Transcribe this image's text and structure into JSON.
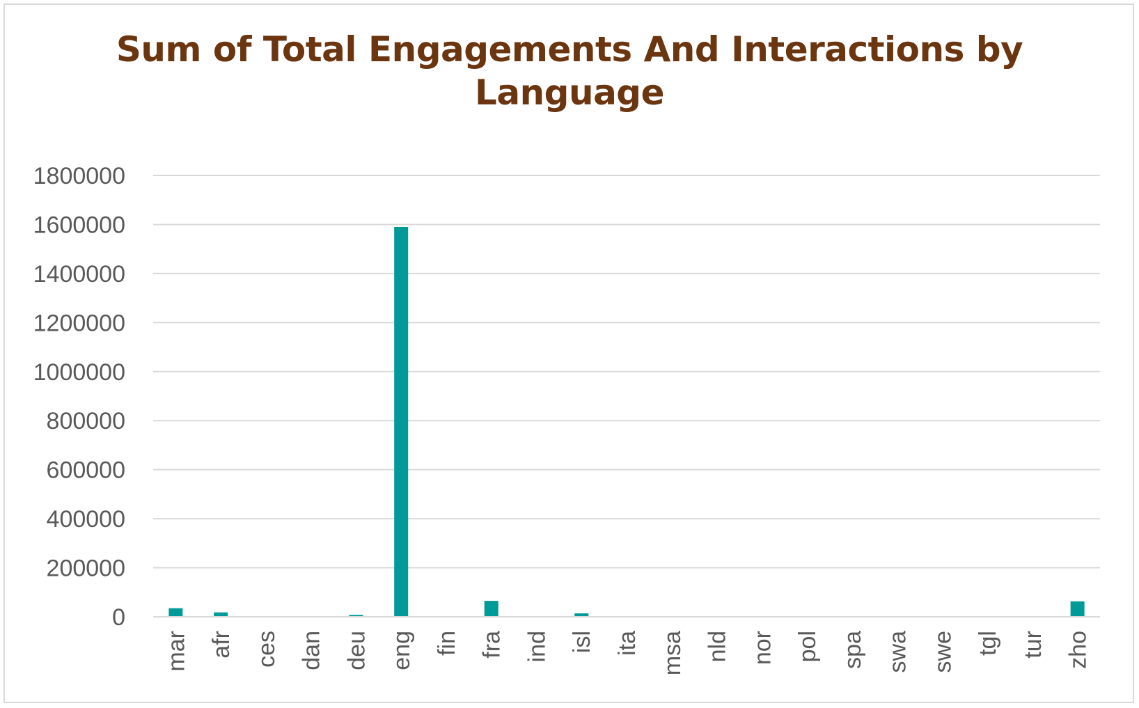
{
  "chart_data": {
    "type": "bar",
    "title_lines": [
      "Sum of Total Engagements And Interactions by",
      "Language"
    ],
    "xlabel": "",
    "ylabel": "",
    "categories": [
      "mar",
      "afr",
      "ces",
      "dan",
      "deu",
      "eng",
      "fin",
      "fra",
      "ind",
      "isl",
      "ita",
      "msa",
      "nld",
      "nor",
      "pol",
      "spa",
      "swa",
      "swe",
      "tgl",
      "tur",
      "zho"
    ],
    "values": [
      35000,
      18000,
      0,
      0,
      8000,
      1590000,
      0,
      65000,
      0,
      14000,
      0,
      0,
      0,
      0,
      0,
      0,
      0,
      0,
      0,
      0,
      63000
    ],
    "ylim": [
      0,
      1800000
    ],
    "yticks": [
      "0",
      "200000",
      "400000",
      "600000",
      "800000",
      "1000000",
      "1200000",
      "1400000",
      "1600000",
      "1800000"
    ],
    "grid": true,
    "legend": "none",
    "bar_color": "#009a98",
    "grid_color": "#d9d9d9",
    "title_color": "#6b3510"
  }
}
